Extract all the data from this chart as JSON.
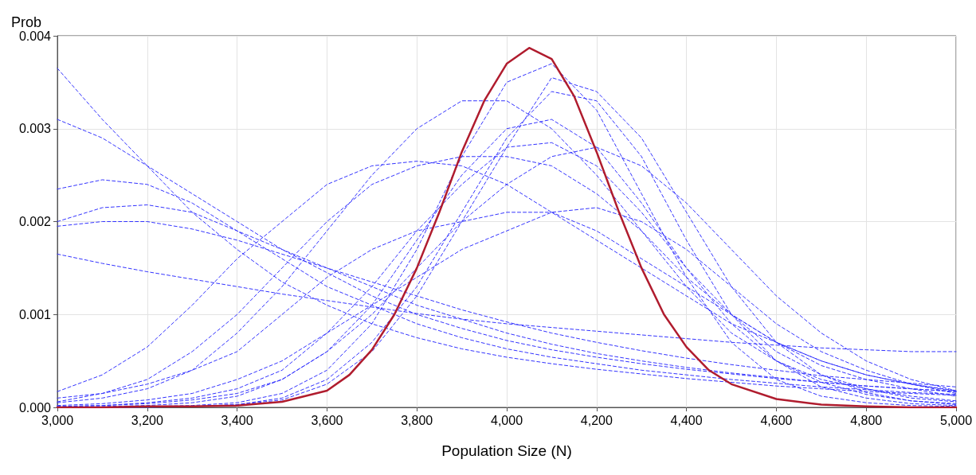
{
  "chart_data": {
    "type": "line",
    "xlabel": "Population Size (N)",
    "ylabel": "Prob",
    "grid": true,
    "marker": "none",
    "xlim": [
      3000,
      5000
    ],
    "ylim": [
      0,
      0.004
    ],
    "xticks": [
      {
        "value": 3000,
        "label": "3,000"
      },
      {
        "value": 3200,
        "label": "3,200"
      },
      {
        "value": 3400,
        "label": "3,400"
      },
      {
        "value": 3600,
        "label": "3,600"
      },
      {
        "value": 3800,
        "label": "3,800"
      },
      {
        "value": 4000,
        "label": "4,000"
      },
      {
        "value": 4200,
        "label": "4,200"
      },
      {
        "value": 4400,
        "label": "4,400"
      },
      {
        "value": 4600,
        "label": "4,600"
      },
      {
        "value": 4800,
        "label": "4,800"
      },
      {
        "value": 5000,
        "label": "5,000"
      }
    ],
    "yticks": [
      {
        "value": 0,
        "label": "0.000"
      },
      {
        "value": 0.001,
        "label": "0.001"
      },
      {
        "value": 0.002,
        "label": "0.002"
      },
      {
        "value": 0.003,
        "label": "0.003"
      },
      {
        "value": 0.004,
        "label": "0.004"
      }
    ],
    "x": [
      3000,
      3100,
      3200,
      3300,
      3400,
      3500,
      3600,
      3700,
      3800,
      3900,
      4000,
      4100,
      4200,
      4300,
      4400,
      4500,
      4600,
      4700,
      4800,
      4900,
      5000
    ],
    "series": [
      {
        "color": "#3333ff",
        "line_style": "dashed",
        "values": [
          0.00365,
          0.0031,
          0.0026,
          0.0021,
          0.0017,
          0.00135,
          0.0011,
          0.0009,
          0.00075,
          0.00063,
          0.00054,
          0.00047,
          0.00041,
          0.00036,
          0.00031,
          0.00027,
          0.00023,
          0.0002,
          0.00017,
          0.00015,
          0.00013
        ]
      },
      {
        "color": "#3333ff",
        "line_style": "dashed",
        "values": [
          0.0031,
          0.0029,
          0.0026,
          0.0023,
          0.002,
          0.0017,
          0.00145,
          0.0012,
          0.001,
          0.00085,
          0.00072,
          0.00062,
          0.00054,
          0.00047,
          0.00041,
          0.00036,
          0.00031,
          0.00027,
          0.00023,
          0.0002,
          0.00017
        ]
      },
      {
        "color": "#3333ff",
        "line_style": "dashed",
        "values": [
          0.00235,
          0.00245,
          0.0024,
          0.0022,
          0.0019,
          0.0016,
          0.0013,
          0.0011,
          0.0009,
          0.00075,
          0.00063,
          0.00054,
          0.00047,
          0.0004,
          0.00035,
          0.0003,
          0.00026,
          0.00022,
          0.00019,
          0.00016,
          0.00014
        ]
      },
      {
        "color": "#3333ff",
        "line_style": "dashed",
        "values": [
          0.002,
          0.00215,
          0.00218,
          0.0021,
          0.0019,
          0.0017,
          0.0015,
          0.0013,
          0.0011,
          0.00095,
          0.0008,
          0.00068,
          0.00058,
          0.0005,
          0.00043,
          0.00037,
          0.00032,
          0.00027,
          0.00023,
          0.0002,
          0.00017
        ]
      },
      {
        "color": "#3333ff",
        "line_style": "dashed",
        "values": [
          0.00195,
          0.002,
          0.002,
          0.00192,
          0.0018,
          0.00165,
          0.0015,
          0.00135,
          0.0012,
          0.00105,
          0.00092,
          0.0008,
          0.0007,
          0.00061,
          0.00053,
          0.00046,
          0.0004,
          0.00034,
          0.0003,
          0.00026,
          0.00022
        ]
      },
      {
        "color": "#3333ff",
        "line_style": "dashed",
        "values": [
          0.00165,
          0.00155,
          0.00146,
          0.00138,
          0.0013,
          0.00122,
          0.00115,
          0.00108,
          0.00101,
          0.00095,
          0.0009,
          0.00086,
          0.00082,
          0.00078,
          0.00074,
          0.0007,
          0.00067,
          0.00064,
          0.00062,
          0.0006,
          0.0006
        ]
      },
      {
        "color": "#3333ff",
        "line_style": "dashed",
        "values": [
          0.00017,
          0.00035,
          0.00065,
          0.0011,
          0.0016,
          0.002,
          0.0024,
          0.0026,
          0.00265,
          0.0026,
          0.0024,
          0.0021,
          0.0018,
          0.0015,
          0.0012,
          0.0009,
          0.0007,
          0.0005,
          0.00035,
          0.00025,
          0.00018
        ]
      },
      {
        "color": "#3333ff",
        "line_style": "dashed",
        "values": [
          5e-05,
          0.0001,
          0.0002,
          0.0004,
          0.0008,
          0.0013,
          0.0019,
          0.0025,
          0.003,
          0.0033,
          0.0033,
          0.003,
          0.0025,
          0.0019,
          0.0013,
          0.0008,
          0.0005,
          0.0003,
          0.0002,
          0.0001,
          6e-05
        ]
      },
      {
        "color": "#3333ff",
        "line_style": "dashed",
        "values": [
          0.0001,
          0.00015,
          0.00025,
          0.0004,
          0.0006,
          0.001,
          0.0014,
          0.0017,
          0.0019,
          0.002,
          0.0021,
          0.0021,
          0.0019,
          0.0016,
          0.0013,
          0.001,
          0.0007,
          0.0005,
          0.00035,
          0.00025,
          0.00017
        ]
      },
      {
        "color": "#3333ff",
        "line_style": "dashed",
        "values": [
          2e-05,
          4e-05,
          8e-05,
          0.00015,
          0.0003,
          0.0005,
          0.0008,
          0.0011,
          0.0014,
          0.0017,
          0.0019,
          0.0021,
          0.00215,
          0.002,
          0.0017,
          0.0013,
          0.0009,
          0.0006,
          0.0004,
          0.00025,
          0.00015
        ]
      },
      {
        "color": "#3333ff",
        "line_style": "dashed",
        "values": [
          1e-05,
          2e-05,
          5e-05,
          0.0001,
          0.0002,
          0.0004,
          0.0008,
          0.0013,
          0.0019,
          0.0024,
          0.0028,
          0.00285,
          0.0026,
          0.0021,
          0.0015,
          0.001,
          0.0006,
          0.00035,
          0.0002,
          0.00012,
          7e-05
        ]
      },
      {
        "color": "#3333ff",
        "line_style": "dashed",
        "values": [
          0,
          1e-05,
          2e-05,
          5e-05,
          0.00012,
          0.0003,
          0.0006,
          0.0011,
          0.0018,
          0.0025,
          0.003,
          0.0031,
          0.0028,
          0.0022,
          0.0015,
          0.0009,
          0.0005,
          0.00027,
          0.00014,
          7e-05,
          4e-05
        ]
      },
      {
        "color": "#3333ff",
        "line_style": "dashed",
        "values": [
          0,
          0,
          1e-05,
          2e-05,
          5e-05,
          0.00015,
          0.0004,
          0.0009,
          0.0017,
          0.0027,
          0.0035,
          0.0037,
          0.0032,
          0.0023,
          0.0014,
          0.0007,
          0.0003,
          0.00012,
          5e-05,
          2e-05,
          1e-05
        ]
      },
      {
        "color": "#3333ff",
        "line_style": "dashed",
        "values": [
          0,
          0,
          0,
          1e-05,
          3e-05,
          0.0001,
          0.0003,
          0.0007,
          0.0013,
          0.0021,
          0.0029,
          0.0034,
          0.0033,
          0.0027,
          0.0018,
          0.001,
          0.0005,
          0.00022,
          0.0001,
          4e-05,
          2e-05
        ]
      },
      {
        "color": "#3333ff",
        "line_style": "dashed",
        "values": [
          1e-05,
          2e-05,
          4e-05,
          8e-05,
          0.00015,
          0.0003,
          0.0006,
          0.001,
          0.0015,
          0.002,
          0.0024,
          0.0027,
          0.0028,
          0.0026,
          0.0022,
          0.0017,
          0.0012,
          0.0008,
          0.0005,
          0.0003,
          0.00018
        ]
      },
      {
        "color": "#3333ff",
        "line_style": "dashed",
        "values": [
          6e-05,
          0.00015,
          0.0003,
          0.0006,
          0.001,
          0.0015,
          0.002,
          0.0024,
          0.0026,
          0.0027,
          0.0027,
          0.0026,
          0.0023,
          0.0019,
          0.0014,
          0.001,
          0.0007,
          0.00045,
          0.0003,
          0.0002,
          0.00012
        ]
      },
      {
        "color": "#3333ff",
        "line_style": "dashed",
        "values": [
          0,
          0,
          0,
          1e-05,
          3e-05,
          8e-05,
          0.00025,
          0.0006,
          0.0012,
          0.002,
          0.0028,
          0.00355,
          0.0034,
          0.0029,
          0.0021,
          0.0013,
          0.0007,
          0.00035,
          0.00016,
          7e-05,
          3e-05
        ]
      },
      {
        "color": "#b01c2e",
        "line_style": "solid",
        "x": [
          3000,
          3100,
          3200,
          3300,
          3400,
          3500,
          3600,
          3650,
          3700,
          3750,
          3800,
          3850,
          3900,
          3950,
          4000,
          4050,
          4100,
          4150,
          4200,
          4250,
          4300,
          4350,
          4400,
          4450,
          4500,
          4600,
          4700,
          4800,
          4900,
          5000
        ],
        "values": [
          0,
          0,
          1e-05,
          1e-05,
          2e-05,
          6e-05,
          0.00018,
          0.00035,
          0.00062,
          0.001,
          0.0015,
          0.0021,
          0.00275,
          0.0033,
          0.0037,
          0.00387,
          0.00375,
          0.00335,
          0.00275,
          0.0021,
          0.0015,
          0.001,
          0.00065,
          0.0004,
          0.00025,
          9e-05,
          3e-05,
          1e-05,
          0,
          0
        ]
      }
    ]
  }
}
